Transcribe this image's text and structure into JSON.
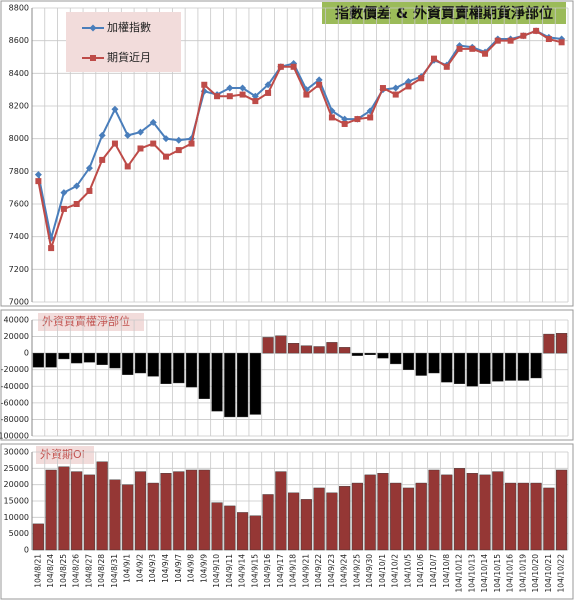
{
  "chart_data": [
    {
      "type": "line",
      "title": "指數價差 & 外資買賣權期貨淨部位",
      "series": [
        {
          "name": "加權指數",
          "color": "#4a7ebb",
          "marker": "diamond",
          "values": [
            7780,
            7390,
            7670,
            7710,
            7820,
            8020,
            8180,
            8020,
            8040,
            8100,
            8000,
            7990,
            8000,
            8290,
            8270,
            8310,
            8310,
            8260,
            8330,
            8440,
            8460,
            8300,
            8360,
            8170,
            8120,
            8120,
            8170,
            8300,
            8310,
            8350,
            8380,
            8480,
            8450,
            8570,
            8560,
            8530,
            8610,
            8610,
            8630,
            8660,
            8620,
            8610
          ]
        },
        {
          "name": "期貨近月",
          "color": "#be4b48",
          "marker": "square",
          "values": [
            7740,
            7330,
            7570,
            7600,
            7680,
            7870,
            7970,
            7830,
            7940,
            7970,
            7890,
            7930,
            7970,
            8330,
            8260,
            8260,
            8270,
            8230,
            8280,
            8440,
            8440,
            8270,
            8330,
            8130,
            8090,
            8120,
            8130,
            8310,
            8270,
            8320,
            8370,
            8490,
            8440,
            8550,
            8550,
            8520,
            8600,
            8600,
            8630,
            8660,
            8610,
            8590
          ]
        }
      ],
      "ylim": [
        7000,
        8800
      ],
      "yticks": [
        7000,
        7200,
        7400,
        7600,
        7800,
        8000,
        8200,
        8400,
        8600,
        8800
      ],
      "grid": true
    },
    {
      "type": "bar",
      "title": "外資買賣權淨部位",
      "color": "#000000",
      "positive_color": "#953735",
      "values": [
        -17000,
        -17000,
        -7000,
        -12000,
        -11000,
        -14000,
        -18000,
        -26000,
        -24000,
        -28000,
        -37000,
        -36000,
        -41000,
        -55000,
        -70000,
        -77000,
        -77000,
        -74000,
        19000,
        21000,
        12000,
        9000,
        8000,
        13000,
        7000,
        -3000,
        -2000,
        -6000,
        -13000,
        -20000,
        -27000,
        -24000,
        -35000,
        -37000,
        -40000,
        -37000,
        -34000,
        -33000,
        -33000,
        -30000,
        23000,
        24000
      ],
      "ylim": [
        -100000,
        40000
      ],
      "yticks": [
        -100000,
        -80000,
        -60000,
        -40000,
        -20000,
        0,
        20000,
        40000
      ],
      "grid": true
    },
    {
      "type": "bar",
      "title": "外資期OI",
      "color": "#953735",
      "categories": [
        "104/8/21",
        "104/8/24",
        "104/8/25",
        "104/8/26",
        "104/8/27",
        "104/8/28",
        "104/8/31",
        "104/9/1",
        "104/9/2",
        "104/9/3",
        "104/9/4",
        "104/9/7",
        "104/9/8",
        "104/9/9",
        "104/9/10",
        "104/9/11",
        "104/9/14",
        "104/9/15",
        "104/9/16",
        "104/9/17",
        "104/9/18",
        "104/9/21",
        "104/9/22",
        "104/9/23",
        "104/9/24",
        "104/9/25",
        "104/9/30",
        "104/10/1",
        "104/10/2",
        "104/10/5",
        "104/10/6",
        "104/10/7",
        "104/10/8",
        "104/10/12",
        "104/10/13",
        "104/10/14",
        "104/10/15",
        "104/10/16",
        "104/10/19",
        "104/10/20",
        "104/10/21",
        "104/10/22"
      ],
      "values": [
        8000,
        24500,
        25500,
        24000,
        23000,
        27000,
        21500,
        20000,
        24000,
        20500,
        23500,
        24000,
        24500,
        24500,
        14500,
        13500,
        11500,
        10500,
        17000,
        24000,
        17500,
        15500,
        19000,
        17500,
        19500,
        20500,
        23000,
        23500,
        20500,
        19000,
        20500,
        24500,
        23000,
        25000,
        23500,
        23000,
        24000,
        20500,
        20500,
        20500,
        19000,
        24500
      ],
      "ylim": [
        0,
        30000
      ],
      "yticks": [
        0,
        5000,
        10000,
        15000,
        20000,
        25000,
        30000
      ],
      "grid": true
    }
  ]
}
